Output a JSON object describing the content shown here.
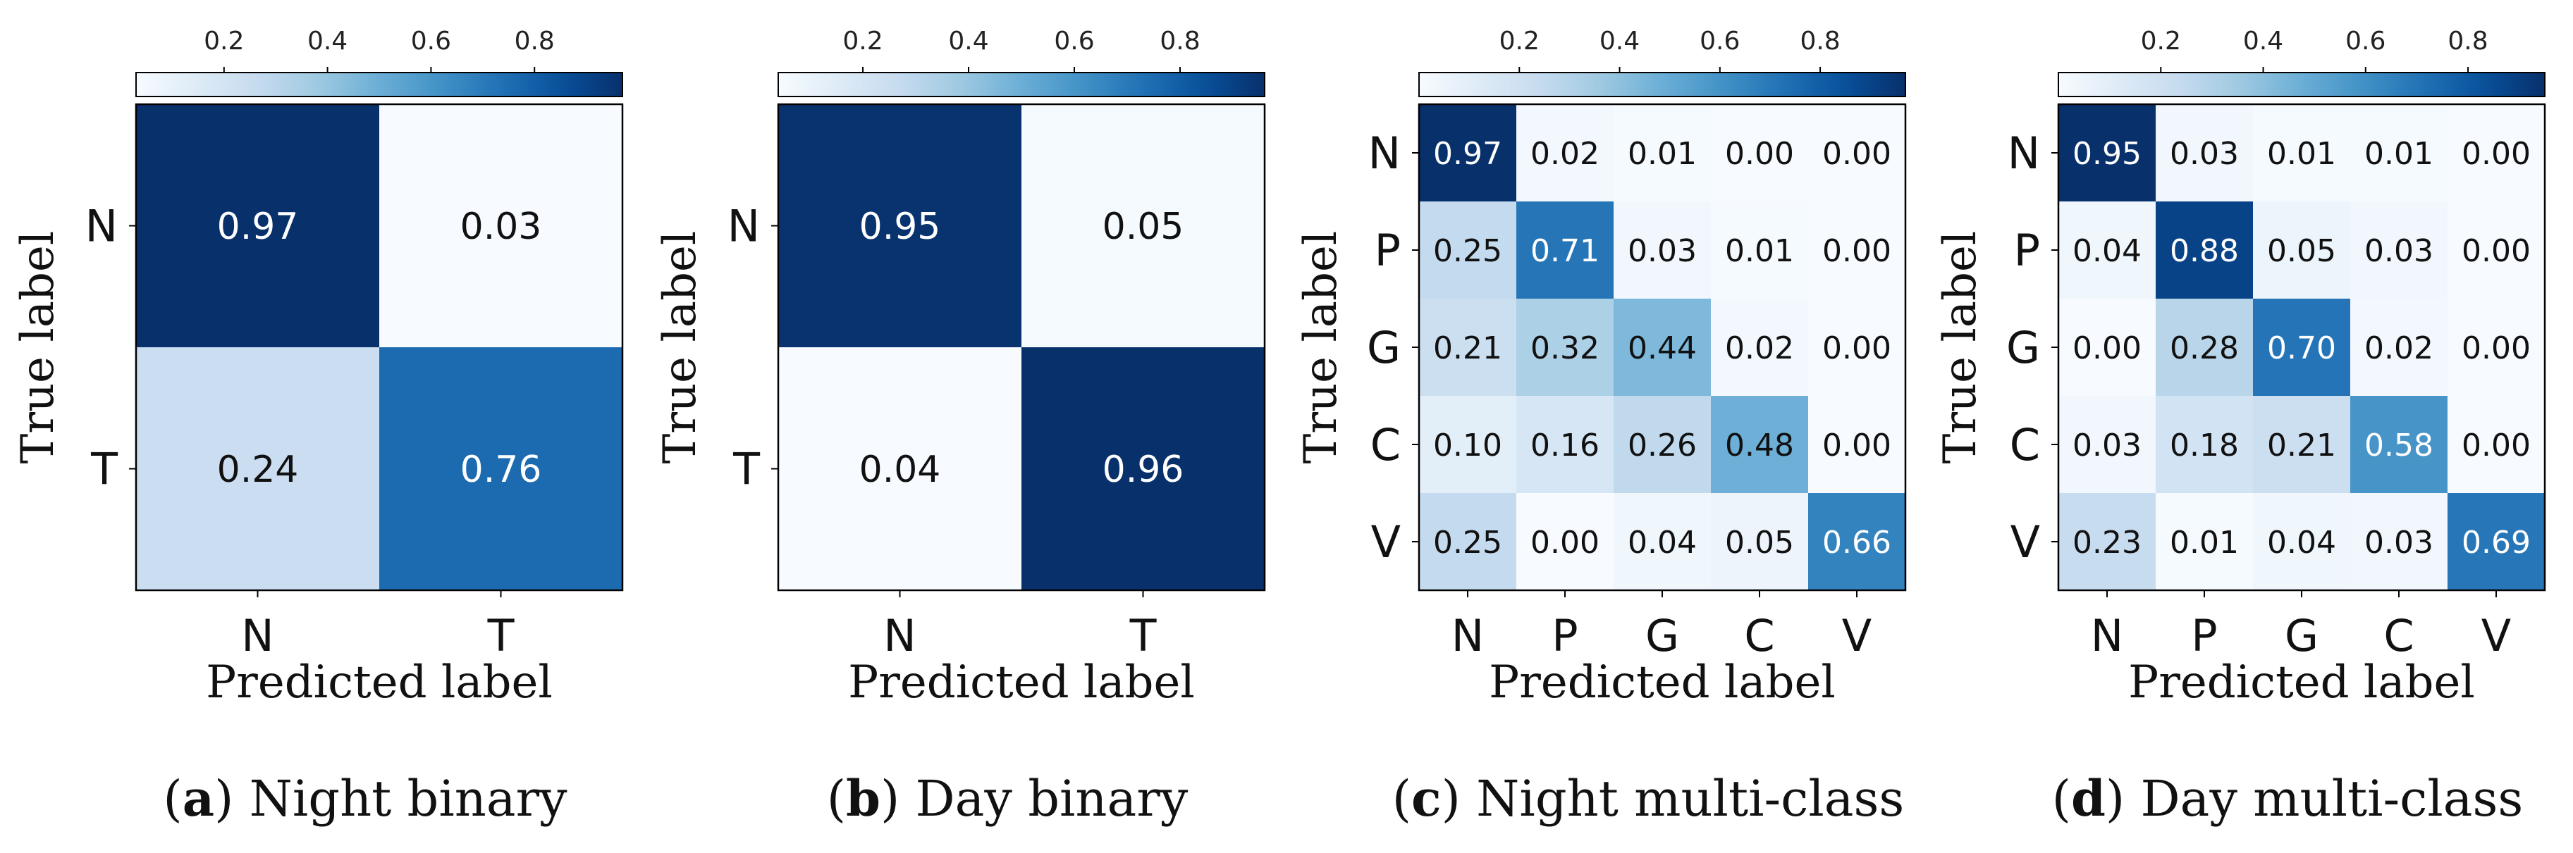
{
  "chart_data": [
    {
      "type": "heatmap",
      "panel_letter": "a",
      "caption": "Night binary",
      "xlabel": "Predicted label",
      "ylabel": "True label",
      "labels": [
        "N",
        "T"
      ],
      "values": [
        [
          0.97,
          0.03
        ],
        [
          0.24,
          0.76
        ]
      ],
      "colorbar": {
        "range": [
          0.03,
          0.97
        ],
        "ticks": [
          0.2,
          0.4,
          0.6,
          0.8
        ],
        "tick_labels": [
          "0.2",
          "0.4",
          "0.6",
          "0.8"
        ],
        "colormap": "Blues"
      }
    },
    {
      "type": "heatmap",
      "panel_letter": "b",
      "caption": "Day binary",
      "xlabel": "Predicted label",
      "ylabel": "True label",
      "labels": [
        "N",
        "T"
      ],
      "values": [
        [
          0.95,
          0.05
        ],
        [
          0.04,
          0.96
        ]
      ],
      "colorbar": {
        "range": [
          0.04,
          0.96
        ],
        "ticks": [
          0.2,
          0.4,
          0.6,
          0.8
        ],
        "tick_labels": [
          "0.2",
          "0.4",
          "0.6",
          "0.8"
        ],
        "colormap": "Blues"
      }
    },
    {
      "type": "heatmap",
      "panel_letter": "c",
      "caption": "Night multi-class",
      "xlabel": "Predicted label",
      "ylabel": "True label",
      "labels": [
        "N",
        "P",
        "G",
        "C",
        "V"
      ],
      "values": [
        [
          0.97,
          0.02,
          0.01,
          0.0,
          0.0
        ],
        [
          0.25,
          0.71,
          0.03,
          0.01,
          0.0
        ],
        [
          0.21,
          0.32,
          0.44,
          0.02,
          0.0
        ],
        [
          0.1,
          0.16,
          0.26,
          0.48,
          0.0
        ],
        [
          0.25,
          0.0,
          0.04,
          0.05,
          0.66
        ]
      ],
      "colorbar": {
        "range": [
          0.0,
          0.97
        ],
        "ticks": [
          0.2,
          0.4,
          0.6,
          0.8
        ],
        "tick_labels": [
          "0.2",
          "0.4",
          "0.6",
          "0.8"
        ],
        "colormap": "Blues"
      }
    },
    {
      "type": "heatmap",
      "panel_letter": "d",
      "caption": "Day multi-class",
      "xlabel": "Predicted label",
      "ylabel": "True label",
      "labels": [
        "N",
        "P",
        "G",
        "C",
        "V"
      ],
      "values": [
        [
          0.95,
          0.03,
          0.01,
          0.01,
          0.0
        ],
        [
          0.04,
          0.88,
          0.05,
          0.03,
          0.0
        ],
        [
          0.0,
          0.28,
          0.7,
          0.02,
          0.0
        ],
        [
          0.03,
          0.18,
          0.21,
          0.58,
          0.0
        ],
        [
          0.23,
          0.01,
          0.04,
          0.03,
          0.69
        ]
      ],
      "colorbar": {
        "range": [
          0.0,
          0.95
        ],
        "ticks": [
          0.2,
          0.4,
          0.6,
          0.8
        ],
        "tick_labels": [
          "0.2",
          "0.4",
          "0.6",
          "0.8"
        ],
        "colormap": "Blues"
      }
    }
  ]
}
